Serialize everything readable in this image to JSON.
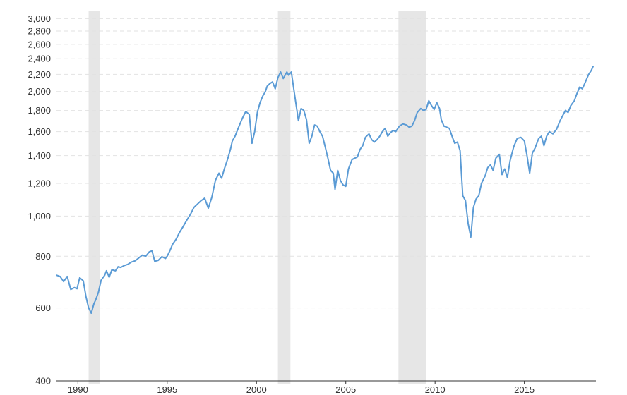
{
  "chart_data": {
    "type": "line",
    "title": "",
    "xlabel": "",
    "ylabel": "",
    "y_scale": "log",
    "ylim": [
      400,
      3100
    ],
    "xlim": [
      1988.8,
      2018.85
    ],
    "y_ticks": [
      400,
      600,
      800,
      1000,
      1200,
      1400,
      1600,
      1800,
      2000,
      2200,
      2400,
      2600,
      2800,
      3000
    ],
    "y_tick_labels": [
      "400",
      "600",
      "800",
      "1,000",
      "1,200",
      "1,400",
      "1,600",
      "1,800",
      "2,000",
      "2,200",
      "2,400",
      "2,600",
      "2,800",
      "3,000"
    ],
    "x_ticks": [
      1990,
      1995,
      2000,
      2005,
      2010,
      2015
    ],
    "x_tick_labels": [
      "1990",
      "1995",
      "2000",
      "2005",
      "2010",
      "2015"
    ],
    "grid": "horizontal dashed",
    "legend": "none",
    "recession_bands": [
      {
        "start": 1990.6,
        "end": 1991.25
      },
      {
        "start": 2001.2,
        "end": 2001.9
      },
      {
        "start": 2007.95,
        "end": 2009.5
      }
    ],
    "series": [
      {
        "color": "#5b9bd5",
        "points": [
          [
            1988.8,
            720
          ],
          [
            1989.0,
            715
          ],
          [
            1989.2,
            695
          ],
          [
            1989.4,
            715
          ],
          [
            1989.6,
            665
          ],
          [
            1989.8,
            672
          ],
          [
            1989.95,
            668
          ],
          [
            1990.1,
            710
          ],
          [
            1990.3,
            698
          ],
          [
            1990.45,
            640
          ],
          [
            1990.6,
            600
          ],
          [
            1990.75,
            583
          ],
          [
            1990.9,
            615
          ],
          [
            1991.0,
            628
          ],
          [
            1991.15,
            655
          ],
          [
            1991.3,
            700
          ],
          [
            1991.5,
            720
          ],
          [
            1991.6,
            738
          ],
          [
            1991.75,
            712
          ],
          [
            1991.9,
            742
          ],
          [
            1992.1,
            738
          ],
          [
            1992.25,
            755
          ],
          [
            1992.4,
            752
          ],
          [
            1992.6,
            760
          ],
          [
            1992.8,
            765
          ],
          [
            1993.0,
            775
          ],
          [
            1993.2,
            780
          ],
          [
            1993.4,
            792
          ],
          [
            1993.6,
            805
          ],
          [
            1993.8,
            800
          ],
          [
            1994.0,
            820
          ],
          [
            1994.15,
            825
          ],
          [
            1994.3,
            778
          ],
          [
            1994.5,
            782
          ],
          [
            1994.7,
            798
          ],
          [
            1994.9,
            790
          ],
          [
            1995.0,
            800
          ],
          [
            1995.15,
            825
          ],
          [
            1995.3,
            855
          ],
          [
            1995.5,
            880
          ],
          [
            1995.7,
            915
          ],
          [
            1995.9,
            945
          ],
          [
            1996.1,
            978
          ],
          [
            1996.3,
            1010
          ],
          [
            1996.5,
            1050
          ],
          [
            1996.7,
            1070
          ],
          [
            1996.9,
            1090
          ],
          [
            1997.1,
            1105
          ],
          [
            1997.3,
            1045
          ],
          [
            1997.5,
            1110
          ],
          [
            1997.7,
            1220
          ],
          [
            1997.9,
            1270
          ],
          [
            1998.05,
            1235
          ],
          [
            1998.2,
            1300
          ],
          [
            1998.4,
            1380
          ],
          [
            1998.55,
            1455
          ],
          [
            1998.65,
            1520
          ],
          [
            1998.8,
            1560
          ],
          [
            1999.0,
            1640
          ],
          [
            1999.2,
            1720
          ],
          [
            1999.4,
            1790
          ],
          [
            1999.6,
            1760
          ],
          [
            1999.75,
            1500
          ],
          [
            1999.9,
            1600
          ],
          [
            2000.05,
            1780
          ],
          [
            2000.2,
            1880
          ],
          [
            2000.35,
            1950
          ],
          [
            2000.5,
            2000
          ],
          [
            2000.6,
            2060
          ],
          [
            2000.75,
            2090
          ],
          [
            2000.9,
            2110
          ],
          [
            2001.05,
            2030
          ],
          [
            2001.2,
            2160
          ],
          [
            2001.35,
            2230
          ],
          [
            2001.5,
            2150
          ],
          [
            2001.7,
            2230
          ],
          [
            2001.8,
            2190
          ],
          [
            2001.95,
            2230
          ],
          [
            2002.1,
            2010
          ],
          [
            2002.2,
            1880
          ],
          [
            2002.35,
            1700
          ],
          [
            2002.5,
            1820
          ],
          [
            2002.65,
            1800
          ],
          [
            2002.8,
            1710
          ],
          [
            2002.95,
            1500
          ],
          [
            2003.1,
            1560
          ],
          [
            2003.25,
            1660
          ],
          [
            2003.4,
            1650
          ],
          [
            2003.55,
            1600
          ],
          [
            2003.7,
            1560
          ],
          [
            2003.85,
            1470
          ],
          [
            2004.0,
            1380
          ],
          [
            2004.15,
            1290
          ],
          [
            2004.3,
            1270
          ],
          [
            2004.4,
            1160
          ],
          [
            2004.55,
            1290
          ],
          [
            2004.7,
            1220
          ],
          [
            2004.85,
            1190
          ],
          [
            2005.0,
            1180
          ],
          [
            2005.15,
            1300
          ],
          [
            2005.35,
            1370
          ],
          [
            2005.5,
            1380
          ],
          [
            2005.65,
            1390
          ],
          [
            2005.8,
            1450
          ],
          [
            2005.95,
            1480
          ],
          [
            2006.1,
            1550
          ],
          [
            2006.3,
            1580
          ],
          [
            2006.45,
            1530
          ],
          [
            2006.6,
            1510
          ],
          [
            2006.75,
            1530
          ],
          [
            2006.9,
            1560
          ],
          [
            2007.05,
            1600
          ],
          [
            2007.2,
            1630
          ],
          [
            2007.35,
            1560
          ],
          [
            2007.5,
            1590
          ],
          [
            2007.65,
            1610
          ],
          [
            2007.8,
            1600
          ],
          [
            2008.0,
            1650
          ],
          [
            2008.2,
            1670
          ],
          [
            2008.4,
            1660
          ],
          [
            2008.55,
            1640
          ],
          [
            2008.7,
            1650
          ],
          [
            2008.85,
            1700
          ],
          [
            2009.0,
            1780
          ],
          [
            2009.2,
            1820
          ],
          [
            2009.35,
            1800
          ],
          [
            2009.5,
            1810
          ],
          [
            2009.65,
            1900
          ],
          [
            2009.8,
            1850
          ],
          [
            2009.95,
            1810
          ],
          [
            2010.1,
            1880
          ],
          [
            2010.25,
            1820
          ],
          [
            2010.35,
            1710
          ],
          [
            2010.5,
            1650
          ],
          [
            2010.65,
            1640
          ],
          [
            2010.8,
            1630
          ],
          [
            2010.95,
            1560
          ],
          [
            2011.1,
            1500
          ],
          [
            2011.25,
            1510
          ],
          [
            2011.4,
            1440
          ],
          [
            2011.55,
            1120
          ],
          [
            2011.7,
            1090
          ],
          [
            2011.85,
            960
          ],
          [
            2012.0,
            890
          ],
          [
            2012.15,
            1050
          ],
          [
            2012.3,
            1100
          ],
          [
            2012.45,
            1120
          ],
          [
            2012.6,
            1200
          ],
          [
            2012.8,
            1250
          ],
          [
            2012.95,
            1310
          ],
          [
            2013.1,
            1330
          ],
          [
            2013.25,
            1290
          ],
          [
            2013.4,
            1380
          ],
          [
            2013.6,
            1410
          ],
          [
            2013.75,
            1260
          ],
          [
            2013.9,
            1300
          ],
          [
            2014.05,
            1240
          ],
          [
            2014.2,
            1360
          ],
          [
            2014.4,
            1470
          ],
          [
            2014.6,
            1540
          ],
          [
            2014.8,
            1550
          ],
          [
            2015.0,
            1520
          ],
          [
            2015.15,
            1400
          ],
          [
            2015.3,
            1270
          ],
          [
            2015.45,
            1420
          ],
          [
            2015.6,
            1460
          ],
          [
            2015.8,
            1540
          ],
          [
            2015.95,
            1560
          ],
          [
            2016.1,
            1480
          ],
          [
            2016.25,
            1560
          ],
          [
            2016.4,
            1600
          ],
          [
            2016.6,
            1580
          ],
          [
            2016.8,
            1620
          ],
          [
            2017.0,
            1700
          ],
          [
            2017.15,
            1750
          ],
          [
            2017.3,
            1800
          ],
          [
            2017.45,
            1780
          ],
          [
            2017.6,
            1850
          ],
          [
            2017.8,
            1900
          ],
          [
            2017.95,
            1980
          ],
          [
            2018.1,
            2050
          ],
          [
            2018.25,
            2030
          ],
          [
            2018.4,
            2100
          ],
          [
            2018.6,
            2200
          ],
          [
            2018.75,
            2250
          ],
          [
            2018.85,
            2300
          ]
        ]
      }
    ]
  }
}
